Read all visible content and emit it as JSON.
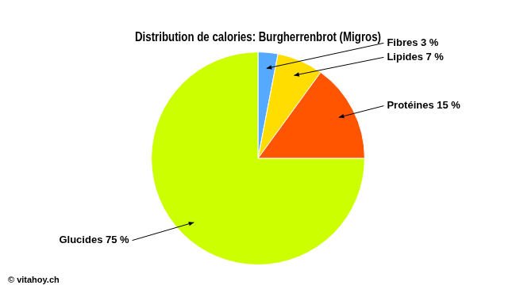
{
  "chart_data": {
    "type": "pie",
    "title": "Distribution de calories: Burgherrenbrot (Migros)",
    "categories": [
      "Fibres 3 %",
      "Lipides 7 %",
      "Protéines 15 %",
      "Glucides 75 %"
    ],
    "values": [
      3,
      7,
      15,
      75
    ],
    "colors": [
      "#55aaff",
      "#ffdd00",
      "#ff5500",
      "#ccff00"
    ],
    "annotations": [
      "© vitahoy.ch"
    ]
  }
}
